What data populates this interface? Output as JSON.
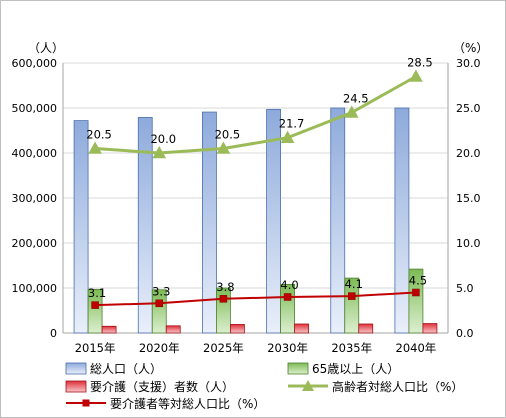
{
  "chart_data": {
    "type": "bar",
    "categories": [
      "2015年",
      "2020年",
      "2025年",
      "2030年",
      "2035年",
      "2040年"
    ],
    "y_left": {
      "unit": "（人）",
      "range": [
        0,
        600000
      ],
      "ticks": [
        "0",
        "100,000",
        "200,000",
        "300,000",
        "400,000",
        "500,000",
        "600,000"
      ]
    },
    "y_right": {
      "unit": "（%）",
      "range": [
        0,
        30
      ],
      "ticks": [
        "0.0",
        "5.0",
        "10.0",
        "15.0",
        "20.0",
        "25.0",
        "30.0"
      ]
    },
    "grid": "horizontal",
    "legend_position": "bottom",
    "series": [
      {
        "name": "総人口（人）",
        "kind": "bar",
        "axis": "left",
        "values": [
          472000,
          479000,
          491000,
          497000,
          500000,
          500000
        ],
        "color": "#8eaadb"
      },
      {
        "name": "65歳以上（人）",
        "kind": "bar",
        "axis": "left",
        "values": [
          97000,
          96000,
          100000,
          108000,
          122000,
          142000
        ],
        "color": "#70ad47"
      },
      {
        "name": "要介護（支援）者数（人）",
        "kind": "bar",
        "axis": "left",
        "values": [
          15000,
          16000,
          19000,
          20000,
          20000,
          21000
        ],
        "color": "#e0303a"
      },
      {
        "name": "高齢者対総人口比（%）",
        "kind": "line",
        "axis": "right",
        "marker": "triangle",
        "values": [
          20.5,
          20.0,
          20.5,
          21.7,
          24.5,
          28.5
        ],
        "labels": [
          "20.5",
          "20.0",
          "20.5",
          "21.7",
          "24.5",
          "28.5"
        ],
        "color": "#9bbb59"
      },
      {
        "name": "要介護者等対総人口比（%）",
        "kind": "line",
        "axis": "right",
        "marker": "square",
        "values": [
          3.1,
          3.3,
          3.8,
          4.0,
          4.1,
          4.5
        ],
        "labels": [
          "3.1",
          "3.3",
          "3.8",
          "4.0",
          "4.1",
          "4.5"
        ],
        "color": "#c00000"
      }
    ]
  }
}
